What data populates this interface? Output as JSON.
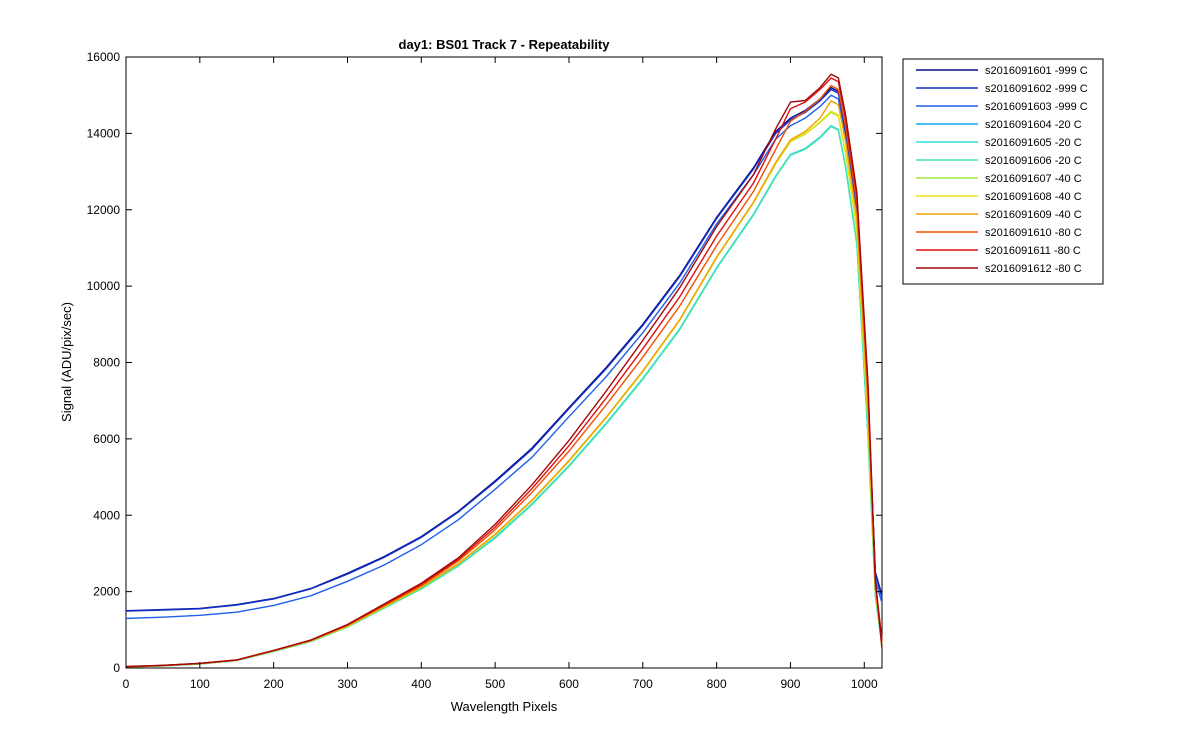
{
  "chart_data": {
    "type": "line",
    "title": "day1: BS01  Track 7  - Repeatability",
    "xlabel": "Wavelength Pixels",
    "ylabel": "Signal (ADU/pix/sec)",
    "xlim": [
      0,
      1024
    ],
    "ylim": [
      0,
      16000
    ],
    "xticks": [
      0,
      100,
      200,
      300,
      400,
      500,
      600,
      700,
      800,
      900,
      1000
    ],
    "yticks": [
      0,
      2000,
      4000,
      6000,
      8000,
      10000,
      12000,
      14000,
      16000
    ],
    "grid": false,
    "legend_position": "outside-right",
    "x": [
      0,
      50,
      100,
      150,
      200,
      250,
      300,
      350,
      400,
      450,
      500,
      550,
      600,
      650,
      700,
      750,
      800,
      850,
      880,
      900,
      920,
      940,
      955,
      965,
      975,
      990,
      1005,
      1015,
      1024
    ],
    "series": [
      {
        "name": "s2016091601 -999 C",
        "color": "#0a0a8c",
        "values": [
          1500,
          1530,
          1560,
          1660,
          1820,
          2080,
          2480,
          2920,
          3440,
          4100,
          4900,
          5760,
          6820,
          7860,
          9000,
          10280,
          11800,
          13100,
          14050,
          14400,
          14600,
          14900,
          15200,
          15100,
          14000,
          12000,
          7000,
          2500,
          1900
        ]
      },
      {
        "name": "s2016091602 -999 C",
        "color": "#1030c8",
        "values": [
          1490,
          1520,
          1550,
          1650,
          1810,
          2070,
          2460,
          2900,
          3420,
          4080,
          4870,
          5730,
          6790,
          7830,
          8970,
          10250,
          11770,
          13070,
          14000,
          14350,
          14550,
          14850,
          15150,
          15050,
          13950,
          11950,
          6950,
          2450,
          1850
        ]
      },
      {
        "name": "s2016091603 -999 C",
        "color": "#2060e8",
        "values": [
          1300,
          1330,
          1380,
          1460,
          1640,
          1890,
          2270,
          2700,
          3230,
          3880,
          4680,
          5520,
          6580,
          7620,
          8780,
          10080,
          11630,
          12920,
          13850,
          14200,
          14400,
          14700,
          15000,
          14900,
          13800,
          11800,
          6800,
          2300,
          1700
        ]
      },
      {
        "name": "s2016091604 -20 C",
        "color": "#10a8f0",
        "values": [
          30,
          60,
          110,
          200,
          440,
          700,
          1080,
          1580,
          2080,
          2680,
          3420,
          4300,
          5300,
          6400,
          7580,
          8880,
          10480,
          11880,
          12880,
          13450,
          13600,
          13900,
          14200,
          14100,
          13100,
          11100,
          6100,
          1900,
          600
        ]
      },
      {
        "name": "s2016091605 -20 C",
        "color": "#30e0e0",
        "values": [
          28,
          58,
          108,
          198,
          436,
          695,
          1075,
          1575,
          2075,
          2675,
          3410,
          4290,
          5290,
          6390,
          7570,
          8870,
          10470,
          11870,
          12870,
          13440,
          13590,
          13890,
          14190,
          14090,
          13090,
          11090,
          6090,
          1890,
          590
        ]
      },
      {
        "name": "s2016091606 -20 C",
        "color": "#40e8a8",
        "values": [
          26,
          56,
          106,
          196,
          432,
          690,
          1070,
          1570,
          2070,
          2670,
          3400,
          4280,
          5280,
          6380,
          7560,
          8860,
          10460,
          11860,
          12860,
          13430,
          13580,
          13880,
          14180,
          14080,
          13080,
          11080,
          6080,
          1880,
          580
        ]
      },
      {
        "name": "s2016091607 -40 C",
        "color": "#a0e840",
        "values": [
          30,
          62,
          112,
          202,
          445,
          708,
          1090,
          1600,
          2110,
          2720,
          3480,
          4380,
          5410,
          6540,
          7760,
          9100,
          10740,
          12180,
          13200,
          13780,
          13980,
          14280,
          14550,
          14450,
          13450,
          11450,
          6450,
          2000,
          620
        ]
      },
      {
        "name": "s2016091608 -40 C",
        "color": "#f0e010",
        "values": [
          31,
          63,
          113,
          203,
          447,
          710,
          1095,
          1605,
          2115,
          2725,
          3490,
          4390,
          5420,
          6550,
          7770,
          9110,
          10750,
          12190,
          13220,
          13800,
          14000,
          14300,
          14580,
          14480,
          13480,
          11480,
          6480,
          2010,
          625
        ]
      },
      {
        "name": "s2016091609 -40 C",
        "color": "#f0a000",
        "values": [
          32,
          64,
          114,
          204,
          450,
          712,
          1100,
          1610,
          2120,
          2730,
          3500,
          4400,
          5430,
          6560,
          7780,
          9120,
          10760,
          12200,
          13240,
          13830,
          14050,
          14400,
          14850,
          14750,
          13750,
          11750,
          6750,
          2050,
          630
        ]
      },
      {
        "name": "s2016091610 -80 C",
        "color": "#f05000",
        "values": [
          34,
          66,
          118,
          208,
          455,
          720,
          1120,
          1640,
          2160,
          2800,
          3620,
          4600,
          5680,
          6880,
          8140,
          9480,
          11060,
          12480,
          13580,
          14320,
          14570,
          14900,
          15250,
          15150,
          14150,
          12150,
          7150,
          2200,
          700
        ]
      },
      {
        "name": "s2016091611 -80 C",
        "color": "#e01010",
        "values": [
          36,
          68,
          120,
          210,
          458,
          725,
          1130,
          1660,
          2190,
          2840,
          3690,
          4700,
          5820,
          7060,
          8360,
          9720,
          11310,
          12700,
          13850,
          14650,
          14820,
          15150,
          15450,
          15350,
          14350,
          12350,
          7350,
          2250,
          720
        ]
      },
      {
        "name": "s2016091612 -80 C",
        "color": "#a00808",
        "values": [
          38,
          70,
          122,
          212,
          460,
          730,
          1140,
          1680,
          2220,
          2880,
          3760,
          4800,
          5960,
          7240,
          8580,
          9960,
          11560,
          12920,
          14120,
          14820,
          14860,
          15200,
          15550,
          15450,
          14450,
          12450,
          7450,
          2300,
          500
        ]
      }
    ]
  }
}
